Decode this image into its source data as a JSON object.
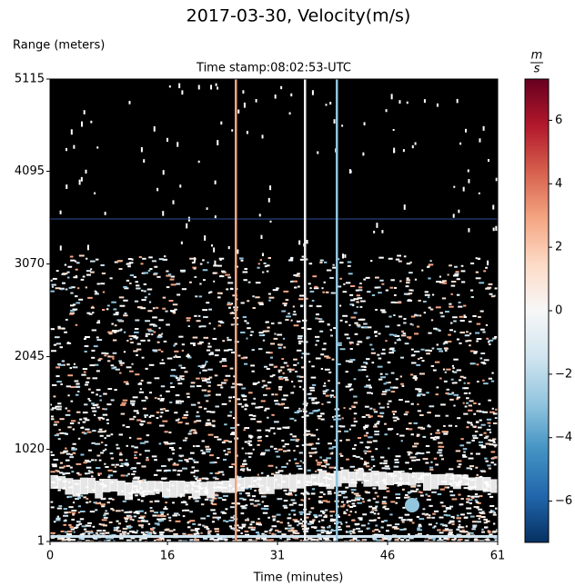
{
  "chart_data": {
    "type": "heatmap",
    "title": "2017-03-30, Velocity(m/s)",
    "subtitle": "Time stamp:08:02:53-UTC",
    "y_label": "Range (meters)",
    "x_label": "Time (minutes)",
    "xlim": [
      0,
      61
    ],
    "xticks": [
      0,
      16,
      31,
      46,
      61
    ],
    "ylim": [
      1,
      5115
    ],
    "yticks": [
      1,
      1020,
      2045,
      3070,
      4095,
      5115
    ],
    "colorbar": {
      "unit_numerator": "m",
      "unit_denominator": "s",
      "clim": [
        -7.3,
        7.3
      ],
      "ticks": [
        {
          "value": -6,
          "label": "−6"
        },
        {
          "value": -4,
          "label": "−4"
        },
        {
          "value": -2,
          "label": "−2"
        },
        0,
        2,
        4,
        6
      ],
      "colors": [
        "#053061",
        "#2166ac",
        "#4393c3",
        "#92c5de",
        "#d1e5f0",
        "#f7f7f7",
        "#fddbc7",
        "#f4a582",
        "#d6604d",
        "#b2182b",
        "#67001f"
      ]
    },
    "background": "#000000"
  }
}
